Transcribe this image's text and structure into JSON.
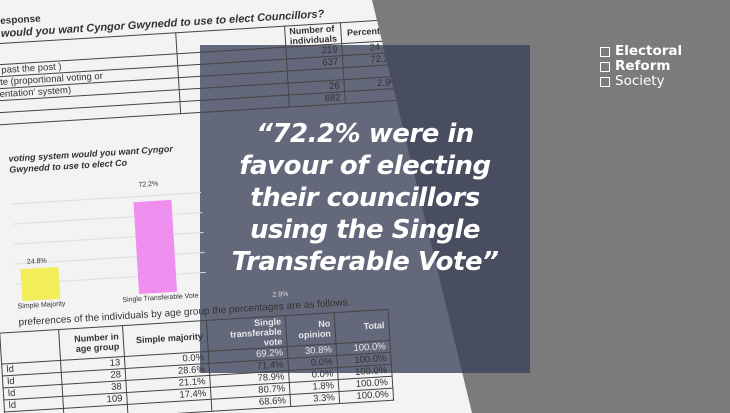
{
  "document": {
    "heading": "esponse",
    "question1": "would you want Cyngor Gwynedd to use to elect Councillors?",
    "table1": {
      "headers": [
        "Number of individuals",
        "Percentage"
      ],
      "rows": [
        {
          "label": "rst past the post )",
          "number": "219",
          "percentage": "24.8%"
        },
        {
          "label": "Vote (proportional voting or",
          "number": "637",
          "percentage": "72.2%"
        },
        {
          "label": "esentation' system)",
          "number": "",
          "percentage": ""
        },
        {
          "label": "",
          "number": "26",
          "percentage": "2.9%"
        },
        {
          "label": "",
          "number": "882",
          "percentage": ""
        }
      ]
    },
    "question2": "voting system would you want Cyngor Gwynedd to use to elect Co",
    "chart": {
      "bars": [
        {
          "label": "Simple Majority",
          "value": "24.8%",
          "color": "#f2ee5a"
        },
        {
          "label": "Single Transferable Vote",
          "value": "72.2%",
          "color": "#ee8ff0"
        },
        {
          "label": "",
          "value": "2.9%",
          "color": "#bbbbbb"
        }
      ]
    },
    "intro2": "preferences of the individuals by age group the percentages are as follows.",
    "table2": {
      "headers": [
        "",
        "Number in age group",
        "Simple majority",
        "Single transferable vote",
        "No opinion",
        "Total"
      ],
      "rows": [
        [
          "ld",
          "13",
          "0.0%",
          "69.2%",
          "30.8%",
          "100.0%"
        ],
        [
          "ld",
          "28",
          "28.6%",
          "71.4%",
          "0.0%",
          "100.0%"
        ],
        [
          "ld",
          "38",
          "21.1%",
          "78.9%",
          "0.0%",
          "100.0%"
        ],
        [
          "ld",
          "109",
          "17.4%",
          "80.7%",
          "1.8%",
          "100.0%"
        ],
        [
          "",
          "",
          "",
          "68.6%",
          "3.3%",
          "100.0%"
        ]
      ]
    }
  },
  "quote": {
    "lines": [
      "“72.2% were in",
      "favour of electing",
      "their councillors",
      "using the Single",
      "Transferable Vote”"
    ]
  },
  "logo": {
    "lines": [
      "Electoral",
      "Reform",
      "Society"
    ]
  },
  "colors": {
    "overlay": "#3a4058",
    "background": "#7b7b7b"
  }
}
